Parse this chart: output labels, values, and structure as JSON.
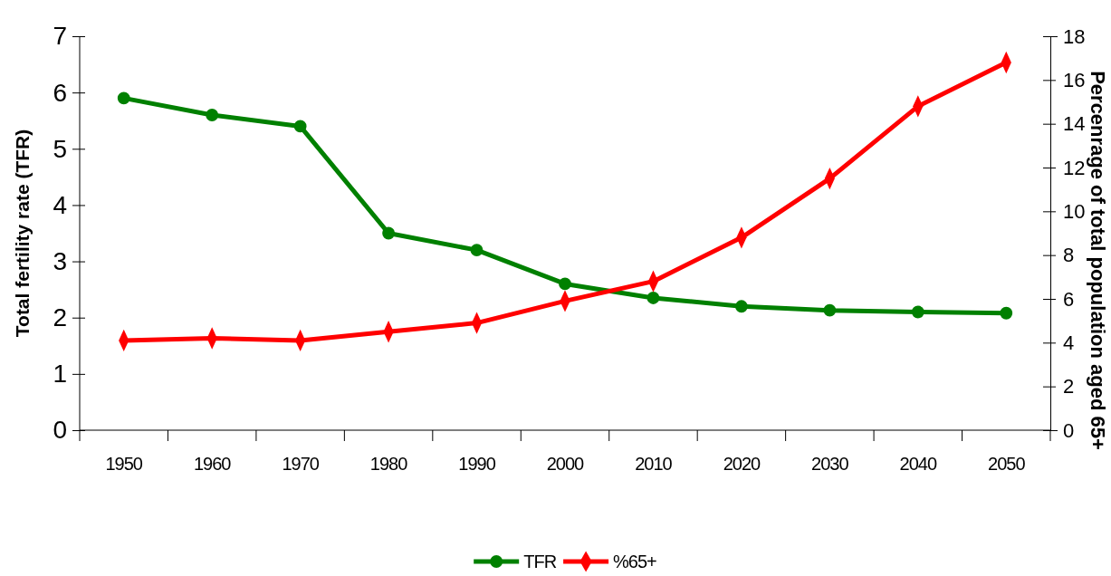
{
  "chart_data": {
    "type": "line",
    "categories": [
      "1950",
      "1960",
      "1970",
      "1980",
      "1990",
      "2000",
      "2010",
      "2020",
      "2030",
      "2040",
      "2050"
    ],
    "ylabel": "Total fertility rate (TFR)",
    "y2label": "Percenrage of total population aged 65+",
    "ylim": [
      0,
      7
    ],
    "yticks": [
      0,
      1,
      2,
      3,
      4,
      5,
      6,
      7
    ],
    "y2lim": [
      0,
      18
    ],
    "y2ticks": [
      0,
      2,
      4,
      6,
      8,
      10,
      12,
      14,
      16,
      18
    ],
    "series": [
      {
        "name": "TFR",
        "color": "#008000",
        "marker": "circle",
        "values": [
          5.9,
          5.6,
          5.4,
          3.5,
          3.2,
          2.6,
          2.35,
          2.2,
          2.13,
          2.1,
          2.08
        ]
      },
      {
        "name": "%65+",
        "color": "#ff0000",
        "marker": "diamond",
        "axis": "y2",
        "values": [
          4.1,
          4.2,
          4.1,
          4.5,
          4.9,
          5.9,
          6.8,
          8.8,
          11.5,
          14.8,
          16.8
        ]
      }
    ],
    "legend": "bottom",
    "grid": false
  }
}
